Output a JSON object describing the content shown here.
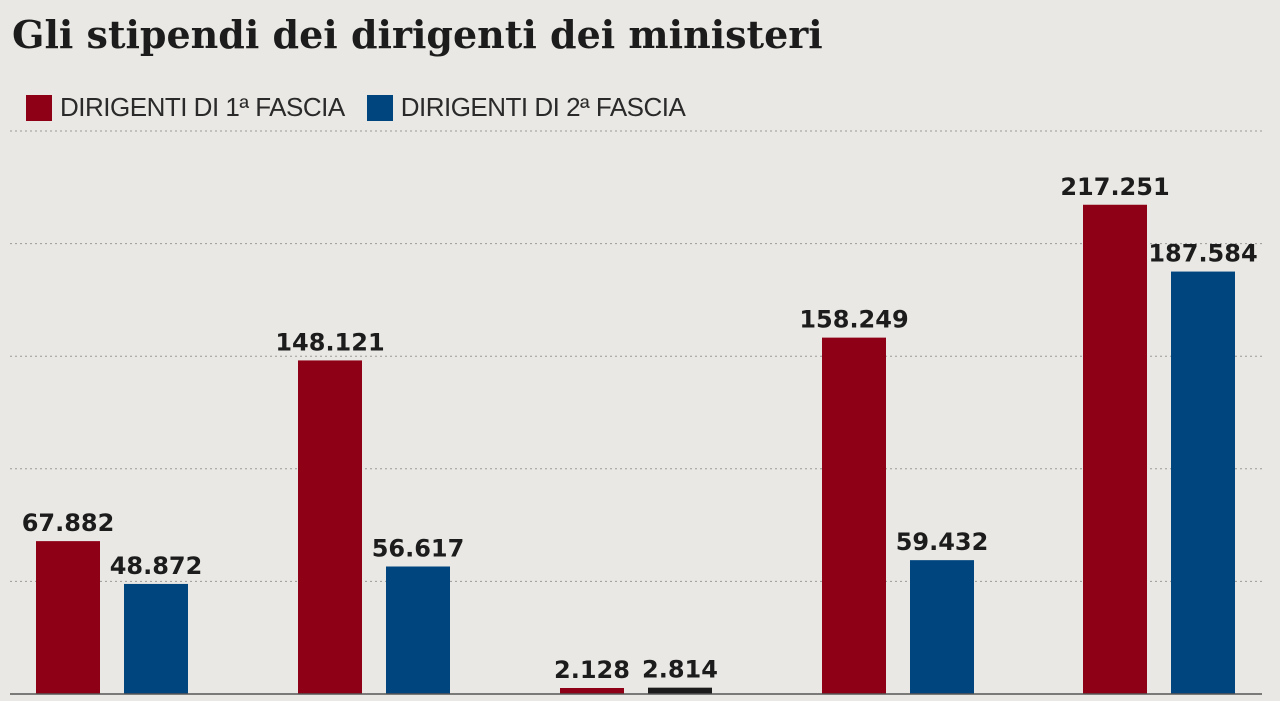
{
  "chart_data": {
    "type": "bar",
    "title": "Gli stipendi dei dirigenti dei ministeri",
    "categories": [
      "",
      "",
      "",
      "",
      ""
    ],
    "series": [
      {
        "name": "DIRIGENTI DI 1ª FASCIA",
        "color": "#8e0016",
        "values": [
          67882,
          148121,
          2128,
          158249,
          217251
        ],
        "labels": [
          "67.882",
          "148.121",
          "2.128",
          "158.249",
          "217.251"
        ]
      },
      {
        "name": "DIRIGENTI DI 2ª FASCIA",
        "color": "#00457e",
        "values": [
          48872,
          56617,
          2814,
          59432,
          187584
        ],
        "labels": [
          "48.872",
          "56.617",
          "2.814",
          "59.432",
          "187.584"
        ]
      }
    ],
    "special_bar_colors": {
      "2": {
        "1": "#1c1c1c"
      }
    },
    "ylim": [
      0,
      250000
    ],
    "gridlines": [
      50000,
      100000,
      150000,
      200000,
      250000
    ],
    "grid": true,
    "legend_position": "top-left",
    "xlabel": "",
    "ylabel": ""
  }
}
